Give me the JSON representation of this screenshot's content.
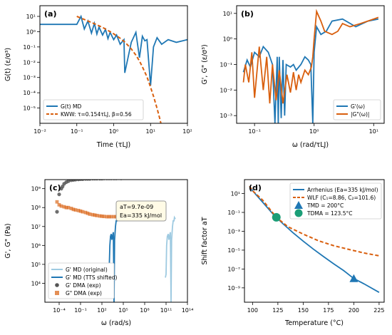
{
  "colors": {
    "blue": "#1f77b4",
    "orange": "#d95f0e",
    "lightblue": "#9ecae1",
    "gray": "#555555",
    "peach": "#f4a582",
    "green": "#1b9e77"
  },
  "chart_data": [
    {
      "id": "a",
      "type": "line",
      "panel_label": "(a)",
      "xlabel": "Time (τLJ)",
      "ylabel": "G(t) (ε/σ³)",
      "xscale": "log",
      "yscale": "log",
      "xlim": [
        0.01,
        100
      ],
      "ylim": [
        1e-06,
        50
      ],
      "x_ticks": [
        "10⁻²",
        "10⁻¹",
        "10⁰",
        "10¹",
        "10²"
      ],
      "y_ticks": [
        "10⁻⁵",
        "10⁻⁴",
        "10⁻³",
        "10⁻²",
        "10⁻¹",
        "10⁰",
        "10¹"
      ],
      "legend": {
        "position": "lower-left",
        "entries": [
          "G(t) MD",
          "KWW: τ=0.154τLJ, β=0.56"
        ]
      },
      "series": [
        {
          "name": "G(t) MD",
          "style": "solid",
          "color": "blue",
          "x": [
            0.01,
            0.05,
            0.1,
            0.13,
            0.16,
            0.2,
            0.25,
            0.3,
            0.35,
            0.4,
            0.5,
            0.6,
            0.7,
            0.8,
            1.0,
            1.2,
            1.5,
            1.9,
            2.0,
            3.0,
            4.0,
            5.0,
            6.0,
            7.0,
            8.0,
            10,
            12,
            15,
            20,
            30,
            50,
            100
          ],
          "y": [
            3,
            3,
            3,
            10,
            1.5,
            5,
            0.8,
            3.5,
            0.7,
            2,
            0.6,
            1.4,
            0.35,
            0.9,
            0.3,
            0.6,
            0.15,
            0.3,
            0.002,
            0.2,
            0.9,
            0.02,
            0.5,
            0.25,
            0.3,
            0.0003,
            0.1,
            0.4,
            0.15,
            0.3,
            0.2,
            0.3
          ]
        },
        {
          "name": "KWW: τ=0.154τLJ, β=0.56",
          "style": "dashed",
          "color": "orange",
          "x": [
            0.1,
            0.2,
            0.3,
            0.5,
            0.8,
            1,
            1.5,
            2,
            3,
            4,
            5,
            6,
            8,
            10,
            12,
            15,
            18,
            20
          ],
          "y": [
            10,
            5.0,
            3.3,
            1.9,
            1.0,
            0.72,
            0.37,
            0.21,
            0.074,
            0.029,
            0.012,
            0.005,
            0.0011,
            0.00023,
            6e-05,
            9.5e-06,
            1.8e-06,
            6e-07
          ]
        }
      ]
    },
    {
      "id": "b",
      "type": "line",
      "panel_label": "(b)",
      "xlabel": "ω (rad/τLJ)",
      "ylabel": "G', G\" (ε/σ³)",
      "xscale": "log",
      "yscale": "log",
      "xlim": [
        0.05,
        15
      ],
      "ylim": [
        0.0005,
        20
      ],
      "x_ticks": [
        "10⁻¹",
        "10⁰",
        "10¹"
      ],
      "y_ticks": [
        "10⁻³",
        "10⁻²",
        "10⁻¹",
        "10⁰",
        "10¹"
      ],
      "legend": {
        "position": "lower-right",
        "entries": [
          "G'(ω)",
          "|G\"(ω)|"
        ]
      },
      "series": [
        {
          "name": "G'(ω)",
          "style": "solid",
          "color": "blue",
          "x": [
            0.065,
            0.075,
            0.085,
            0.1,
            0.12,
            0.14,
            0.17,
            0.2,
            0.22,
            0.24,
            0.25,
            0.26,
            0.28,
            0.3,
            0.32,
            0.34,
            0.4,
            0.45,
            0.5,
            0.6,
            0.7,
            0.8,
            0.88,
            0.95,
            1.0,
            1.1,
            1.3,
            1.6,
            2,
            3,
            5,
            8,
            12
          ],
          "y": [
            0.05,
            0.15,
            0.08,
            0.3,
            0.2,
            0.5,
            0.3,
            0.1,
            0.0005,
            0.2,
            0.0005,
            0.2,
            0.0008,
            0.15,
            0.001,
            0.1,
            0.08,
            0.1,
            0.06,
            0.1,
            0.2,
            0.15,
            0.1,
            0.0005,
            0.3,
            3,
            1.5,
            2,
            5,
            6,
            3,
            5,
            6
          ]
        },
        {
          "name": "|G\"(ω)|",
          "style": "solid",
          "color": "orange",
          "x": [
            0.065,
            0.07,
            0.08,
            0.09,
            0.1,
            0.12,
            0.14,
            0.16,
            0.18,
            0.2,
            0.23,
            0.26,
            0.3,
            0.35,
            0.4,
            0.45,
            0.5,
            0.55,
            0.6,
            0.7,
            0.8,
            0.9,
            0.95,
            1.0,
            1.1,
            1.3,
            1.5,
            2,
            2.5,
            3,
            4,
            6,
            10,
            12
          ],
          "y": [
            0.02,
            0.1,
            0.02,
            0.3,
            0.005,
            0.5,
            0.01,
            0.2,
            0.003,
            0.1,
            0.004,
            0.06,
            0.003,
            0.04,
            0.008,
            0.05,
            0.01,
            0.04,
            0.02,
            0.06,
            0.04,
            0.08,
            0.2,
            1.0,
            12,
            5,
            2,
            1.5,
            2,
            4,
            3,
            4,
            6,
            7
          ]
        }
      ]
    },
    {
      "id": "c",
      "type": "scatter",
      "panel_label": "(c)",
      "xlabel": "ω (rad/s)",
      "ylabel": "G', G\" (Pa)",
      "xscale": "log",
      "yscale": "log",
      "xlim": [
        1e-06,
        100000000000000.0
      ],
      "ylim": [
        1000.0,
        3000000000.0
      ],
      "x_ticks": [
        "10⁻⁴",
        "10⁻¹",
        "10²",
        "10⁵",
        "10⁸",
        "10¹¹",
        "10¹⁴"
      ],
      "y_ticks": [
        "10⁴",
        "10⁵",
        "10⁶",
        "10⁷",
        "10⁸",
        "10⁹"
      ],
      "annotation": {
        "line1": "aT=9.7e-09",
        "line2": "Ea=335 kJ/mol"
      },
      "legend": {
        "position": "lower-left",
        "entries": [
          "G' MD (original)",
          "G' MD (TTS shifted)",
          "G' DMA  (exp)",
          "G\" DMA  (exp)"
        ]
      },
      "series": [
        {
          "name": "G' MD (original)",
          "style": "solid",
          "color": "lightblue",
          "x": [
            80000000000.0,
            100000000000.0,
            120000000000.0,
            150000000000.0,
            200000000000.0,
            250000000000.0,
            300000000000.0,
            400000000000.0,
            500000000000.0,
            600000000000.0,
            800000000000.0,
            1000000000000.0,
            1300000000000.0,
            1500000000000.0,
            2000000000000.0
          ],
          "y": [
            20000.0,
            30000.0,
            1000000.0,
            3000000.0,
            4000000.0,
            2000000.0,
            3000000.0,
            5000000.0,
            1000.0,
            2000000.0,
            10000000.0,
            20000000.0,
            20000000.0,
            30000000.0,
            25000000.0
          ]
        },
        {
          "name": "G' MD (TTS shifted)",
          "style": "solid",
          "color": "blue",
          "x": [
            800,
            1000,
            1300,
            1600,
            2000,
            2500,
            3000,
            4000,
            5000,
            6000,
            8000,
            10000,
            13000,
            15000,
            20000
          ],
          "y": [
            20000.0,
            30000.0,
            1000000.0,
            3000000.0,
            4000000.0,
            2000000.0,
            3000000.0,
            5000000.0,
            1000.0,
            2000000.0,
            10000000.0,
            20000000.0,
            20000000.0,
            30000000.0,
            25000000.0
          ]
        },
        {
          "name": "G' DMA  (exp)",
          "style": "marker-circle",
          "color": "gray",
          "x": [
            5e-05,
            0.0001,
            0.0002,
            0.0003,
            0.0005,
            0.001,
            0.002,
            0.005,
            0.01,
            0.02,
            0.05,
            0.1,
            0.2,
            0.5,
            1,
            2,
            5,
            10,
            20,
            50,
            100,
            200,
            500,
            1000,
            2000,
            5000,
            10000,
            50000
          ],
          "y": [
            60000000.0,
            500000000.0,
            1000000000.0,
            1300000000.0,
            1800000000.0,
            2200000000.0,
            2500000000.0,
            2800000000.0,
            2900000000.0,
            3000000000.0,
            3100000000.0,
            3200000000.0,
            3200000000.0,
            3300000000.0,
            3300000000.0,
            3300000000.0,
            3400000000.0,
            3400000000.0,
            3400000000.0,
            3400000000.0,
            3400000000.0,
            3500000000.0,
            3500000000.0,
            3500000000.0,
            3500000000.0,
            3500000000.0,
            3500000000.0,
            3500000000.0
          ]
        },
        {
          "name": "G\" DMA  (exp)",
          "style": "marker-square",
          "color": "orange",
          "x": [
            5e-05,
            0.0001,
            0.0002,
            0.0005,
            0.001,
            0.002,
            0.005,
            0.01,
            0.02,
            0.05,
            0.1,
            0.2,
            0.5,
            1,
            2,
            5,
            10,
            20,
            50,
            100,
            200,
            500,
            1000,
            2000,
            5000,
            10000,
            50000
          ],
          "y": [
            200000000.0,
            140000000.0,
            120000000.0,
            110000000.0,
            100000000.0,
            100000000.0,
            90000000.0,
            80000000.0,
            75000000.0,
            70000000.0,
            65000000.0,
            60000000.0,
            55000000.0,
            50000000.0,
            45000000.0,
            42000000.0,
            40000000.0,
            38000000.0,
            36000000.0,
            35000000.0,
            34000000.0,
            33000000.0,
            33000000.0,
            33000000.0,
            33000000.0,
            33000000.0,
            33000000.0
          ]
        }
      ]
    },
    {
      "id": "d",
      "type": "line",
      "panel_label": "(d)",
      "xlabel": "Temperature (°C)",
      "ylabel": "Shift factor aT",
      "xscale": "linear",
      "yscale": "log",
      "xlim": [
        92,
        230
      ],
      "ylim": [
        3e-11,
        300
      ],
      "x_ticks": [
        "100",
        "125",
        "150",
        "175",
        "200",
        "225"
      ],
      "x_tick_values": [
        100,
        125,
        150,
        175,
        200,
        225
      ],
      "y_ticks": [
        "10⁻⁹",
        "10⁻⁷",
        "10⁻⁵",
        "10⁻³",
        "10⁻¹",
        "10¹"
      ],
      "legend": {
        "position": "top-right",
        "entries": [
          "Arrhenius (Ea=335 kJ/mol)",
          "WLF (C₁=8.86, C₂=101.6)",
          "TMD = 200°C",
          "TDMA = 123.5°C"
        ]
      },
      "series": [
        {
          "name": "Arrhenius (Ea=335 kJ/mol)",
          "style": "solid",
          "color": "blue",
          "x": [
            97,
            100,
            110,
            120,
            123.5,
            130,
            140,
            150,
            160,
            170,
            180,
            190,
            200,
            210,
            225
          ],
          "y": [
            60,
            20,
            1.2,
            0.07,
            0.03,
            0.0063,
            0.0007,
            9e-05,
            1.3e-05,
            2.1e-06,
            3.6e-07,
            6.8e-08,
            9.7e-09,
            2.7e-09,
            3.3e-10
          ]
        },
        {
          "name": "WLF (C₁=8.86, C₂=101.6)",
          "style": "dashed",
          "color": "orange",
          "x": [
            97,
            100,
            110,
            123.5,
            135,
            150,
            165,
            180,
            195,
            210,
            225
          ],
          "y": [
            60,
            20,
            2.0,
            0.03,
            0.003,
            0.0005,
            0.0001,
            3e-05,
            1.2e-05,
            5e-06,
            2.5e-06
          ]
        }
      ],
      "markers": [
        {
          "name": "TMD = 200°C",
          "shape": "triangle",
          "color": "blue",
          "x": 200,
          "y": 9.7e-09
        },
        {
          "name": "TDMA = 123.5°C",
          "shape": "circle",
          "color": "green",
          "x": 123.5,
          "y": 0.03
        }
      ]
    }
  ]
}
